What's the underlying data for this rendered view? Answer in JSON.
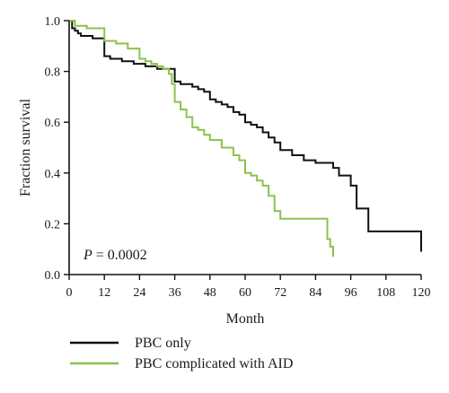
{
  "chart_data": {
    "type": "line",
    "step": true,
    "xlabel": "Month",
    "ylabel": "Fraction survival",
    "xlim": [
      0,
      120
    ],
    "ylim": [
      0,
      1.0
    ],
    "xticks": [
      0,
      12,
      24,
      36,
      48,
      60,
      72,
      84,
      96,
      108,
      120
    ],
    "yticks": [
      0.0,
      0.2,
      0.4,
      0.6,
      0.8,
      1.0
    ],
    "ytick_labels": [
      "0.0",
      "0.2",
      "0.4",
      "0.6",
      "0.8",
      "1.0"
    ],
    "grid": false,
    "legend_position": "bottom",
    "annotation": {
      "p_letter": "P",
      "p_rest": " = 0.0002"
    },
    "series": [
      {
        "name": "PBC only",
        "color": "#111111",
        "x": [
          0,
          1,
          2,
          3,
          4,
          8,
          12,
          14,
          18,
          22,
          26,
          30,
          32,
          36,
          38,
          42,
          44,
          46,
          48,
          50,
          52,
          54,
          56,
          58,
          60,
          62,
          64,
          66,
          68,
          70,
          72,
          76,
          80,
          84,
          90,
          92,
          96,
          98,
          100,
          102,
          110,
          120
        ],
        "y": [
          1.0,
          0.97,
          0.96,
          0.95,
          0.94,
          0.93,
          0.86,
          0.85,
          0.84,
          0.83,
          0.82,
          0.81,
          0.81,
          0.76,
          0.75,
          0.74,
          0.73,
          0.72,
          0.69,
          0.68,
          0.67,
          0.66,
          0.64,
          0.63,
          0.6,
          0.59,
          0.58,
          0.56,
          0.54,
          0.52,
          0.49,
          0.47,
          0.45,
          0.44,
          0.42,
          0.39,
          0.35,
          0.26,
          0.26,
          0.17,
          0.17,
          0.09
        ]
      },
      {
        "name": "PBC complicated with AID",
        "color": "#8bc34a",
        "x": [
          0,
          2,
          6,
          12,
          16,
          20,
          24,
          26,
          28,
          30,
          32,
          34,
          35,
          36,
          38,
          40,
          42,
          44,
          46,
          48,
          52,
          56,
          58,
          60,
          62,
          64,
          66,
          68,
          70,
          72,
          84,
          88,
          89,
          90
        ],
        "y": [
          1.0,
          0.98,
          0.97,
          0.92,
          0.91,
          0.89,
          0.85,
          0.84,
          0.83,
          0.82,
          0.81,
          0.79,
          0.75,
          0.68,
          0.65,
          0.62,
          0.58,
          0.57,
          0.55,
          0.53,
          0.5,
          0.47,
          0.45,
          0.4,
          0.39,
          0.37,
          0.35,
          0.31,
          0.25,
          0.22,
          0.22,
          0.14,
          0.11,
          0.07
        ]
      }
    ]
  }
}
